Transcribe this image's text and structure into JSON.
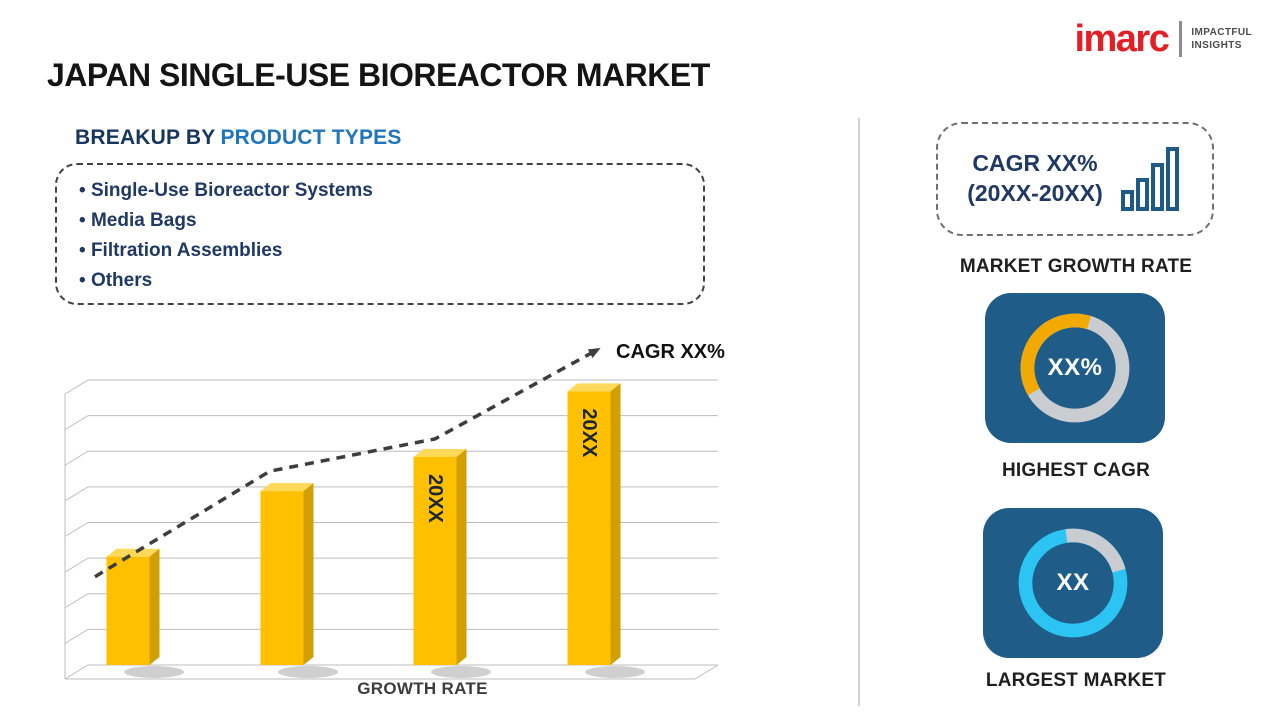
{
  "header": {
    "title": "JAPAN SINGLE-USE BIOREACTOR MARKET"
  },
  "logo": {
    "brand": "imarc",
    "tagline": [
      "IMPACTFUL",
      "INSIGHTS"
    ]
  },
  "breakup": {
    "heading_prefix": "BREAKUP BY",
    "heading_highlight": "PRODUCT TYPES",
    "items": [
      "Single-Use Bioreactor Systems",
      "Media Bags",
      "Filtration Assemblies",
      "Others"
    ]
  },
  "chart_data": [
    {
      "type": "bar",
      "title": "GROWTH RATE",
      "xlabel": "GROWTH RATE",
      "bar_labels": [
        "",
        "",
        "20XX",
        "20XX"
      ],
      "values": [
        38,
        61,
        73,
        96
      ],
      "ylim": [
        0,
        100
      ],
      "grid": true,
      "effect": "3d",
      "bar_color": "#FFC000",
      "trend_label": "CAGR XX%",
      "trend_style": "dashed-arrow-up"
    },
    {
      "type": "donut",
      "label": "HIGHEST CAGR",
      "center_text": "XX%",
      "segments": [
        {
          "name": "highlight",
          "color": "#F2A900",
          "fraction": 0.38
        },
        {
          "name": "base",
          "color": "#C9CDD1",
          "fraction": 0.62
        }
      ]
    },
    {
      "type": "donut",
      "label": "LARGEST MARKET",
      "center_text": "XX",
      "segments": [
        {
          "name": "base",
          "color": "#2BC4F3",
          "fraction": 0.77
        },
        {
          "name": "highlight",
          "color": "#C9CDD1",
          "fraction": 0.23
        }
      ]
    }
  ],
  "sidebar": {
    "growth_card": {
      "line1": "CAGR XX%",
      "line2": "(20XX-20XX)"
    },
    "growth_caption": "MARKET GROWTH RATE"
  },
  "colors": {
    "brand_red": "#E31E24",
    "navy_text": "#1F3864",
    "highlight_blue": "#2076BC",
    "card_navy": "#1F5C87",
    "bar_gold": "#FFC000",
    "ring_gray": "#C9CDD1",
    "ring_gold": "#F2A900",
    "ring_cyan": "#2BC4F3"
  }
}
